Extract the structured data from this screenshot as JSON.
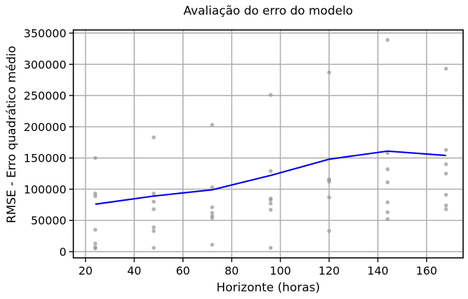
{
  "chart_data": {
    "type": "scatter",
    "title": "Avaliação do erro do modelo",
    "xlabel": "Horizonte (horas)",
    "ylabel": "RMSE - Erro quadrático médio",
    "xlim": [
      15,
      175
    ],
    "ylim": [
      -10000,
      355000
    ],
    "xticks": [
      20,
      40,
      60,
      80,
      100,
      120,
      140,
      160
    ],
    "yticks": [
      0,
      50000,
      100000,
      150000,
      200000,
      250000,
      300000,
      350000
    ],
    "grid": true,
    "colors": {
      "points": "#999999",
      "line": "#0000ee",
      "grid": "#b0b0b0"
    },
    "series": [
      {
        "type": "scatter",
        "points": [
          [
            24,
            150000
          ],
          [
            24,
            93000
          ],
          [
            24,
            89000
          ],
          [
            24,
            35000
          ],
          [
            24,
            13000
          ],
          [
            24,
            7000
          ],
          [
            24,
            5000
          ],
          [
            48,
            183000
          ],
          [
            48,
            93000
          ],
          [
            48,
            80000
          ],
          [
            48,
            68000
          ],
          [
            48,
            39000
          ],
          [
            48,
            33000
          ],
          [
            48,
            6000
          ],
          [
            72,
            203000
          ],
          [
            72,
            103000
          ],
          [
            72,
            71000
          ],
          [
            72,
            62000
          ],
          [
            72,
            57000
          ],
          [
            72,
            54000
          ],
          [
            72,
            11000
          ],
          [
            96,
            251000
          ],
          [
            96,
            129000
          ],
          [
            96,
            85000
          ],
          [
            96,
            83000
          ],
          [
            96,
            77000
          ],
          [
            96,
            67000
          ],
          [
            96,
            6000
          ],
          [
            120,
            287000
          ],
          [
            120,
            116000
          ],
          [
            120,
            114000
          ],
          [
            120,
            112000
          ],
          [
            120,
            87000
          ],
          [
            120,
            33000
          ],
          [
            144,
            339000
          ],
          [
            144,
            158000
          ],
          [
            144,
            132000
          ],
          [
            144,
            111000
          ],
          [
            144,
            79000
          ],
          [
            144,
            63000
          ],
          [
            144,
            52000
          ],
          [
            168,
            293000
          ],
          [
            168,
            163000
          ],
          [
            168,
            140000
          ],
          [
            168,
            125000
          ],
          [
            168,
            91000
          ],
          [
            168,
            74000
          ],
          [
            168,
            68000
          ]
        ]
      },
      {
        "type": "line",
        "x": [
          24,
          48,
          72,
          96,
          120,
          144,
          168
        ],
        "y": [
          76000,
          89000,
          99000,
          122000,
          148000,
          161000,
          154000
        ]
      }
    ]
  }
}
